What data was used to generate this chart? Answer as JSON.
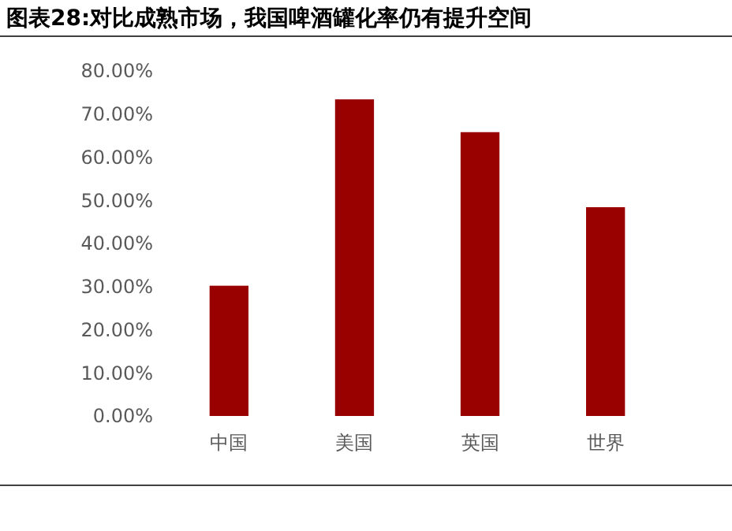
{
  "chart_data": {
    "type": "bar",
    "title": "图表28:对比成熟市场，我国啤酒罐化率仍有提升空间",
    "categories": [
      "中国",
      "美国",
      "英国",
      "世界"
    ],
    "values": [
      30.2,
      73.4,
      65.8,
      48.4
    ],
    "color": "#990000",
    "ylim": [
      0,
      80
    ],
    "yticks": [
      {
        "value": 0,
        "label": "0.00%"
      },
      {
        "value": 10,
        "label": "10.00%"
      },
      {
        "value": 20,
        "label": "20.00%"
      },
      {
        "value": 30,
        "label": "30.00%"
      },
      {
        "value": 40,
        "label": "40.00%"
      },
      {
        "value": 50,
        "label": "50.00%"
      },
      {
        "value": 60,
        "label": "60.00%"
      },
      {
        "value": 70,
        "label": "70.00%"
      },
      {
        "value": 80,
        "label": "80.00%"
      }
    ],
    "grid": false
  }
}
